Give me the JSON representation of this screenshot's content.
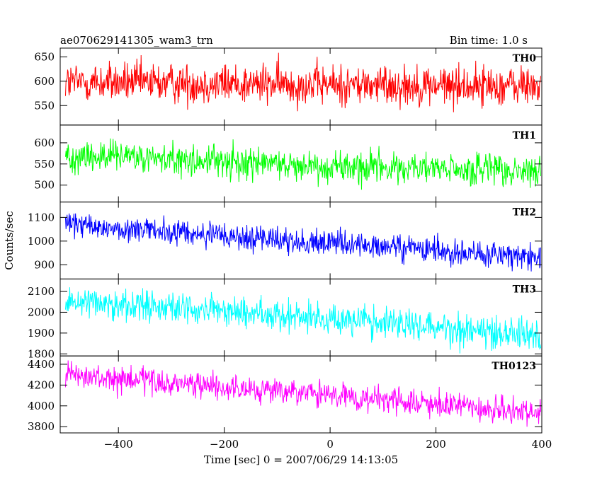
{
  "chart_data": {
    "type": "line",
    "title": "ae070629141305_wam3_trn",
    "bin_time_label": "Bin time: 1.0 s",
    "xlabel": "Time [sec] 0 = 2007/06/29 14:13:05",
    "ylabel": "Counts/sec",
    "xlim": [
      -510,
      400
    ],
    "x_ticks": [
      -400,
      -200,
      0,
      200,
      400
    ],
    "x_tick_labels": [
      "−400",
      "−200",
      "0",
      "200",
      "400"
    ],
    "grid": false,
    "legend": "none",
    "n_points": 900,
    "x_start": -500,
    "x_end": 398,
    "panels": [
      {
        "name": "TH0",
        "color": "#ff0000",
        "ylim": [
          510,
          668
        ],
        "y_ticks": [
          550,
          600,
          650
        ],
        "trend": [
          [
            -500,
            598
          ],
          [
            0,
            593
          ],
          [
            398,
            590
          ]
        ],
        "noise_amp": 30
      },
      {
        "name": "TH1",
        "color": "#00ff00",
        "ylim": [
          460,
          642
        ],
        "y_ticks": [
          500,
          550,
          600
        ],
        "trend": [
          [
            -500,
            570
          ],
          [
            0,
            545
          ],
          [
            398,
            530
          ]
        ],
        "noise_amp": 28
      },
      {
        "name": "TH2",
        "color": "#0000ff",
        "ylim": [
          840,
          1165
        ],
        "y_ticks": [
          900,
          1000,
          1100
        ],
        "trend": [
          [
            -500,
            1070
          ],
          [
            -200,
            1020
          ],
          [
            0,
            990
          ],
          [
            398,
            930
          ]
        ],
        "noise_amp": 40
      },
      {
        "name": "TH3",
        "color": "#00ffff",
        "ylim": [
          1790,
          2160
        ],
        "y_ticks": [
          1800,
          1900,
          2000,
          2100
        ],
        "trend": [
          [
            -500,
            2060
          ],
          [
            0,
            1970
          ],
          [
            398,
            1890
          ]
        ],
        "noise_amp": 55
      },
      {
        "name": "TH0123",
        "color": "#ff00ff",
        "ylim": [
          3740,
          4480
        ],
        "y_ticks": [
          3800,
          4000,
          4200,
          4400
        ],
        "trend": [
          [
            -500,
            4290
          ],
          [
            0,
            4100
          ],
          [
            398,
            3920
          ]
        ],
        "noise_amp": 90
      }
    ]
  }
}
